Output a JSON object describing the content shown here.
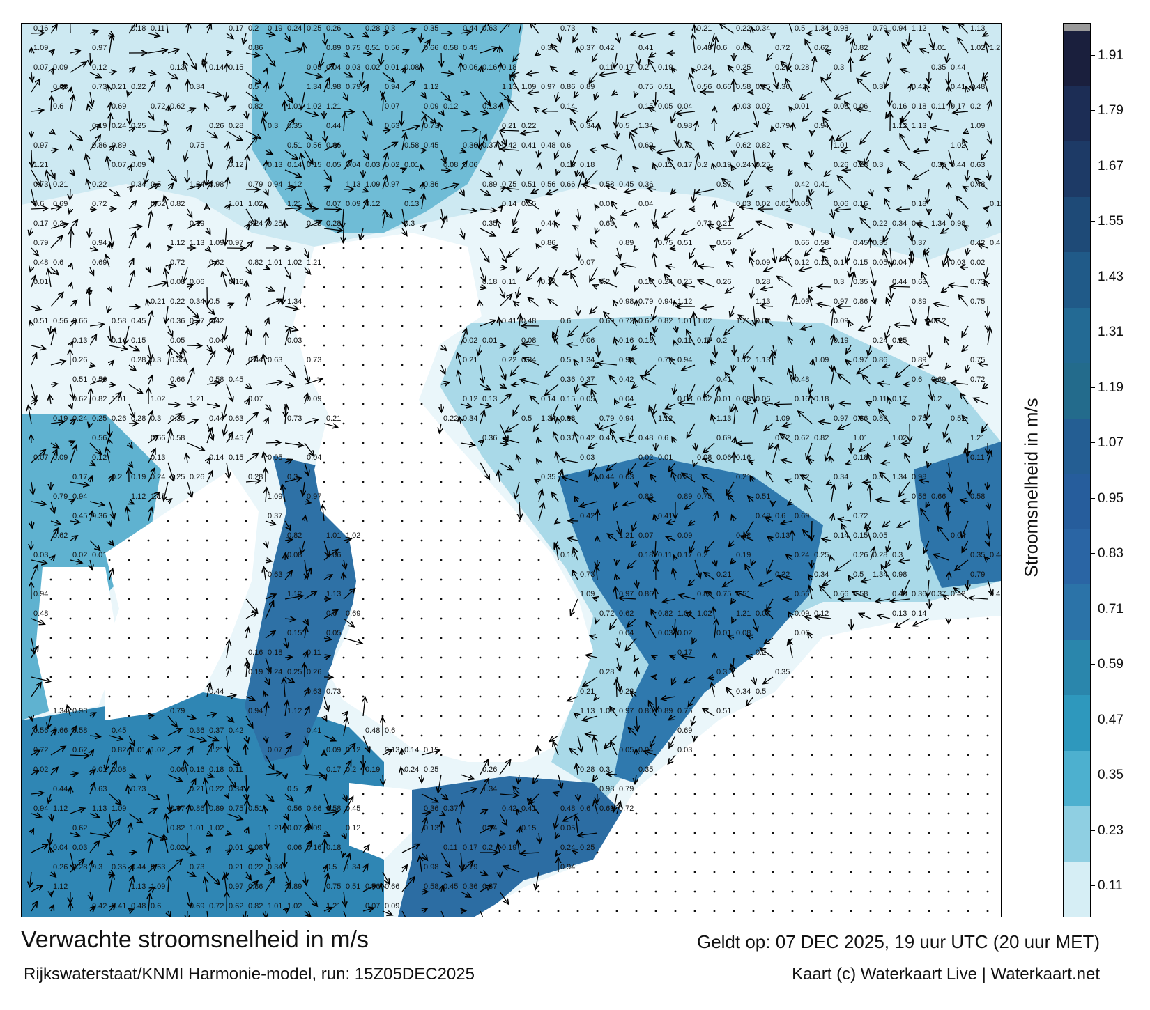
{
  "title": "Verwachte stroomsnelheid in m/s",
  "subtitle": "Rijkswaterstaat/KNMI Harmonie-model, run: 15Z05DEC2025",
  "valid": "Geldt op: 07 DEC 2025, 19 uur UTC (20 uur MET)",
  "credit": "Kaart (c) Waterkaart Live | Waterkaart.net",
  "colorbar": {
    "label": "Stroomsnelheid in m/s",
    "ticks": [
      "1.91",
      "1.79",
      "1.67",
      "1.55",
      "1.43",
      "1.31",
      "1.19",
      "1.07",
      "0.95",
      "0.83",
      "0.71",
      "0.59",
      "0.47",
      "0.35",
      "0.23",
      "0.11"
    ],
    "colors": [
      "#1a1f3d",
      "#1c2d55",
      "#1d3a66",
      "#1e4a77",
      "#205a88",
      "#236a94",
      "#236b8c",
      "#245e93",
      "#265d9c",
      "#2a65a4",
      "#2b73a8",
      "#2a86ac",
      "#2e98bd",
      "#4db0cf",
      "#8fcfe2",
      "#d6eef5"
    ]
  },
  "arrow_labels": [
    "0.16",
    "0.18",
    "0.11",
    "0.17",
    "0.2",
    "0.19",
    "0.24",
    "0.25",
    "0.26",
    "0.28",
    "0.3",
    "0.35",
    "0.44",
    "0.63",
    "0.73",
    "0.21",
    "0.22",
    "0.34",
    "0.5",
    "1.34",
    "0.98",
    "0.79",
    "0.94",
    "1.12",
    "1.13",
    "1.09",
    "0.97",
    "0.86",
    "0.89",
    "0.75",
    "0.51",
    "0.56",
    "0.66",
    "0.58",
    "0.45",
    "0.36",
    "0.37",
    "0.42",
    "0.41",
    "0.48",
    "0.6",
    "0.69",
    "0.72",
    "0.62",
    "0.82",
    "1.01",
    "1.02",
    "1.21",
    "0.07",
    "0.09",
    "0.12",
    "0.13",
    "0.14",
    "0.15",
    "0.05",
    "0.04",
    "0.03",
    "0.02",
    "0.01",
    "0.08",
    "0.06"
  ]
}
